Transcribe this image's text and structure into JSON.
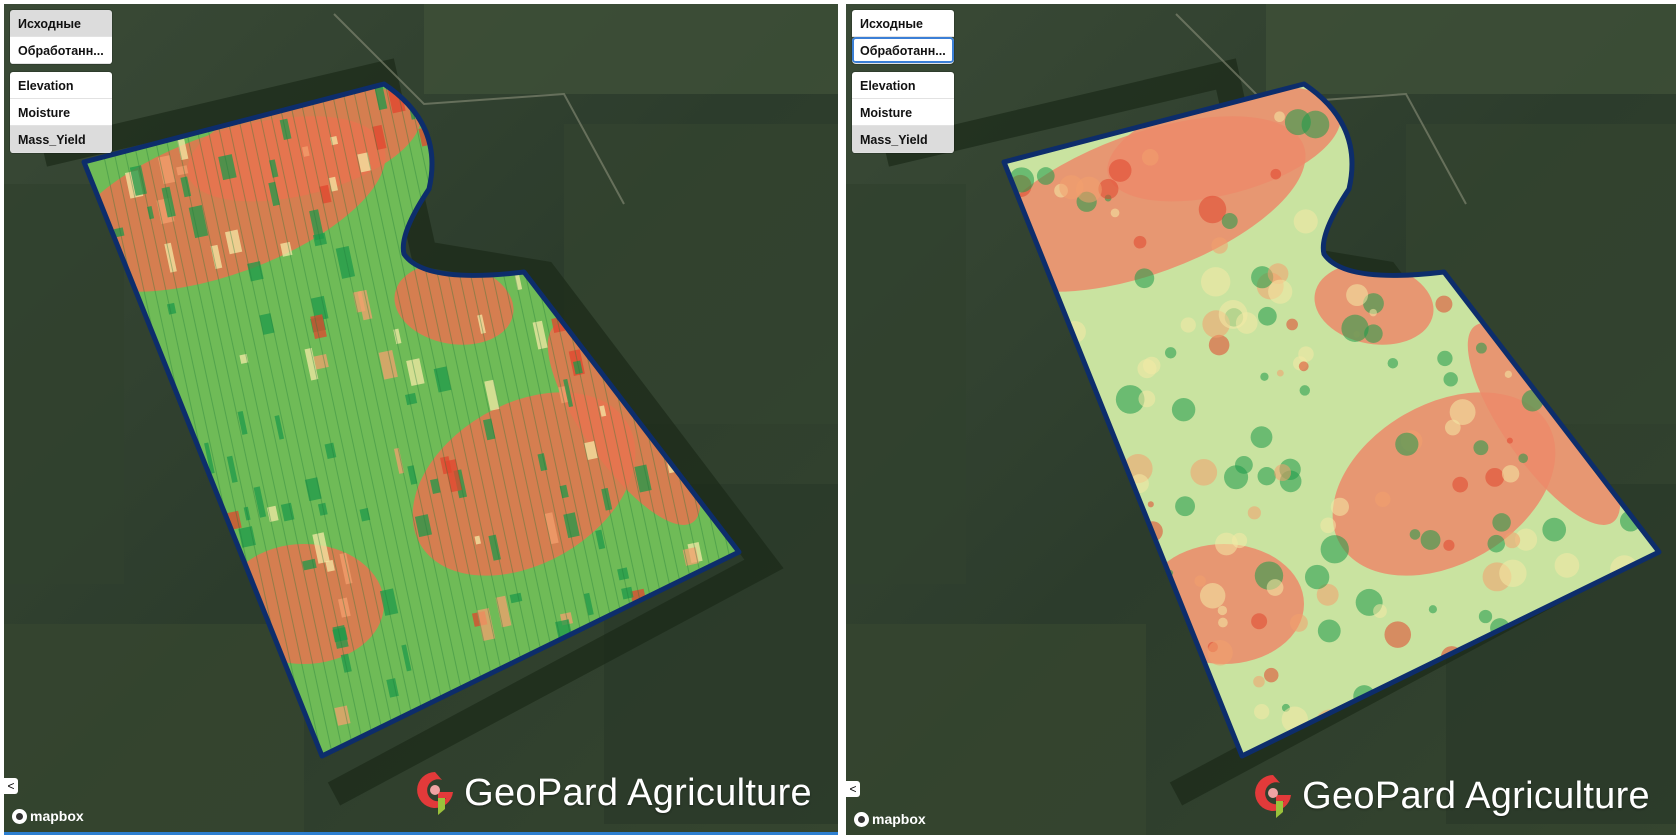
{
  "colors": {
    "boundary": "#0d2d6b",
    "high": "#1e9a4a",
    "mid": "#f4e9a6",
    "low": "#e0462e",
    "satellite": "#2e3f2d"
  },
  "panels": [
    {
      "id": "left",
      "groups": {
        "source": [
          {
            "label": "Исходные",
            "state": "active"
          },
          {
            "label": "Обработанн...",
            "state": "normal"
          }
        ],
        "layers": [
          {
            "label": "Elevation",
            "state": "normal"
          },
          {
            "label": "Moisture",
            "state": "normal"
          },
          {
            "label": "Mass_Yield",
            "state": "active"
          }
        ]
      },
      "collapse_label": "<",
      "attribution": "mapbox",
      "watermark": "GeoPard Agriculture",
      "view": "raw"
    },
    {
      "id": "right",
      "groups": {
        "source": [
          {
            "label": "Исходные",
            "state": "normal"
          },
          {
            "label": "Обработанн...",
            "state": "outlined"
          }
        ],
        "layers": [
          {
            "label": "Elevation",
            "state": "normal"
          },
          {
            "label": "Moisture",
            "state": "normal"
          },
          {
            "label": "Mass_Yield",
            "state": "active"
          }
        ]
      },
      "collapse_label": "<",
      "attribution": "mapbox",
      "watermark": "GeoPard Agriculture",
      "view": "processed"
    }
  ]
}
